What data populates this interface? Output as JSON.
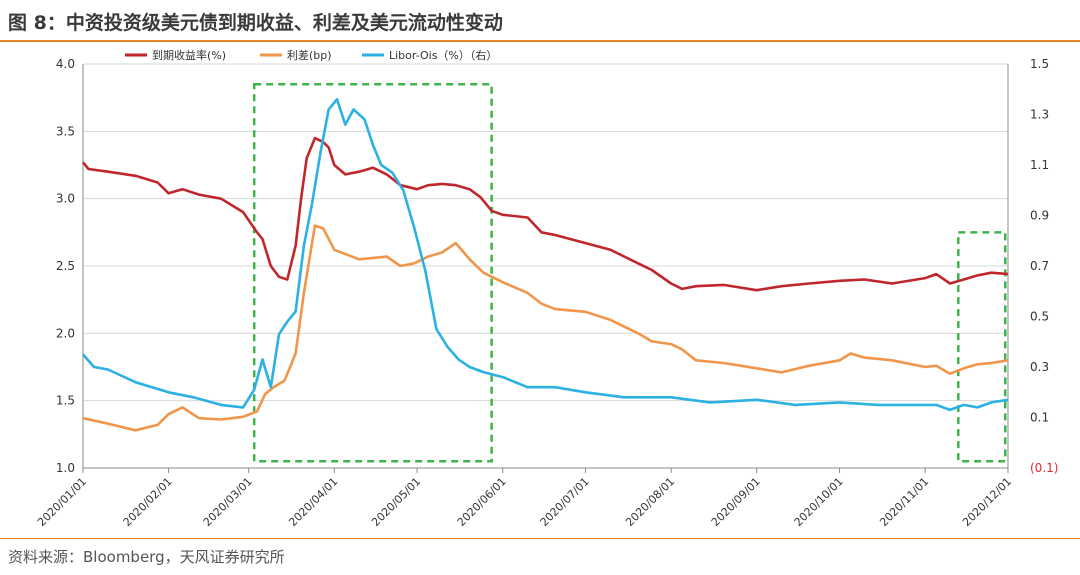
{
  "title": "图 8：中资投资级美元债到期收益、利差及美元流动性变动",
  "source": "资料来源：Bloomberg，天风证券研究所",
  "colors": {
    "yield": "#c0272d",
    "spread": "#f0954a",
    "libor": "#2bb1e3",
    "highlight": "#3cb54a",
    "accent": "#e8852c",
    "negative": "#e0282f"
  },
  "chart_data": {
    "type": "line",
    "x_tick_labels": [
      "2020/01/01",
      "2020/02/01",
      "2020/03/01",
      "2020/04/01",
      "2020/05/01",
      "2020/06/01",
      "2020/07/01",
      "2020/08/01",
      "2020/09/01",
      "2020/10/01",
      "2020/11/01",
      "2020/12/01"
    ],
    "y_left": {
      "ylim": [
        1.0,
        4.0
      ],
      "ticks": [
        "1.0",
        "1.5",
        "2.0",
        "2.5",
        "3.0",
        "3.5",
        "4.0"
      ]
    },
    "y_right": {
      "ylim": [
        -0.1,
        1.5
      ],
      "ticks": [
        "(0.1)",
        "0.1",
        "0.3",
        "0.5",
        "0.7",
        "0.9",
        "1.1",
        "1.3",
        "1.5"
      ]
    },
    "legend": {
      "position": "top-left"
    },
    "series": [
      {
        "name": "到期收益率(%)",
        "axis": "left",
        "color": "#c0272d",
        "x": [
          "2020-01-01",
          "2020-01-03",
          "2020-01-10",
          "2020-01-20",
          "2020-01-28",
          "2020-02-01",
          "2020-02-06",
          "2020-02-12",
          "2020-02-20",
          "2020-02-28",
          "2020-03-04",
          "2020-03-06",
          "2020-03-09",
          "2020-03-12",
          "2020-03-15",
          "2020-03-18",
          "2020-03-20",
          "2020-03-22",
          "2020-03-25",
          "2020-03-28",
          "2020-03-30",
          "2020-04-01",
          "2020-04-05",
          "2020-04-10",
          "2020-04-15",
          "2020-04-20",
          "2020-04-25",
          "2020-05-01",
          "2020-05-05",
          "2020-05-10",
          "2020-05-15",
          "2020-05-20",
          "2020-05-24",
          "2020-05-28",
          "2020-06-01",
          "2020-06-10",
          "2020-06-15",
          "2020-06-20",
          "2020-07-01",
          "2020-07-10",
          "2020-07-20",
          "2020-07-25",
          "2020-08-01",
          "2020-08-05",
          "2020-08-10",
          "2020-08-20",
          "2020-09-01",
          "2020-09-10",
          "2020-09-20",
          "2020-10-01",
          "2020-10-10",
          "2020-10-20",
          "2020-11-01",
          "2020-11-05",
          "2020-11-10",
          "2020-11-15",
          "2020-11-20",
          "2020-11-25",
          "2020-12-01"
        ],
        "values": [
          3.27,
          3.22,
          3.2,
          3.17,
          3.12,
          3.04,
          3.07,
          3.03,
          3.0,
          2.9,
          2.75,
          2.7,
          2.5,
          2.42,
          2.4,
          2.65,
          3.0,
          3.3,
          3.45,
          3.42,
          3.38,
          3.25,
          3.18,
          3.2,
          3.23,
          3.18,
          3.1,
          3.07,
          3.1,
          3.11,
          3.1,
          3.07,
          3.01,
          2.91,
          2.88,
          2.86,
          2.75,
          2.73,
          2.67,
          2.62,
          2.52,
          2.47,
          2.37,
          2.33,
          2.35,
          2.36,
          2.32,
          2.35,
          2.37,
          2.39,
          2.4,
          2.37,
          2.41,
          2.44,
          2.37,
          2.4,
          2.43,
          2.45,
          2.44
        ]
      },
      {
        "name": "利差(bp)",
        "axis": "left",
        "color": "#f0954a",
        "x": [
          "2020-01-01",
          "2020-01-10",
          "2020-01-20",
          "2020-01-28",
          "2020-02-01",
          "2020-02-06",
          "2020-02-12",
          "2020-02-20",
          "2020-02-28",
          "2020-03-04",
          "2020-03-07",
          "2020-03-10",
          "2020-03-14",
          "2020-03-18",
          "2020-03-21",
          "2020-03-25",
          "2020-03-28",
          "2020-04-01",
          "2020-04-10",
          "2020-04-20",
          "2020-04-25",
          "2020-04-30",
          "2020-05-05",
          "2020-05-10",
          "2020-05-15",
          "2020-05-20",
          "2020-05-25",
          "2020-06-01",
          "2020-06-10",
          "2020-06-15",
          "2020-06-20",
          "2020-07-01",
          "2020-07-10",
          "2020-07-20",
          "2020-07-25",
          "2020-08-01",
          "2020-08-05",
          "2020-08-10",
          "2020-08-20",
          "2020-09-01",
          "2020-09-10",
          "2020-09-20",
          "2020-10-01",
          "2020-10-05",
          "2020-10-10",
          "2020-10-20",
          "2020-11-01",
          "2020-11-05",
          "2020-11-10",
          "2020-11-15",
          "2020-11-20",
          "2020-11-25",
          "2020-12-01"
        ],
        "values": [
          1.37,
          1.33,
          1.28,
          1.32,
          1.4,
          1.45,
          1.37,
          1.36,
          1.38,
          1.42,
          1.55,
          1.6,
          1.65,
          1.85,
          2.3,
          2.8,
          2.78,
          2.62,
          2.55,
          2.57,
          2.5,
          2.52,
          2.57,
          2.6,
          2.67,
          2.55,
          2.45,
          2.38,
          2.3,
          2.22,
          2.18,
          2.16,
          2.1,
          2.0,
          1.94,
          1.92,
          1.88,
          1.8,
          1.78,
          1.74,
          1.71,
          1.76,
          1.8,
          1.85,
          1.82,
          1.8,
          1.75,
          1.76,
          1.7,
          1.74,
          1.77,
          1.78,
          1.8
        ]
      },
      {
        "name": "Libor-Ois（%）（右）",
        "axis": "right",
        "color": "#2bb1e3",
        "x": [
          "2020-01-01",
          "2020-01-05",
          "2020-01-10",
          "2020-01-20",
          "2020-02-01",
          "2020-02-10",
          "2020-02-20",
          "2020-02-28",
          "2020-03-03",
          "2020-03-06",
          "2020-03-09",
          "2020-03-12",
          "2020-03-15",
          "2020-03-18",
          "2020-03-21",
          "2020-03-24",
          "2020-03-27",
          "2020-03-30",
          "2020-04-02",
          "2020-04-05",
          "2020-04-08",
          "2020-04-12",
          "2020-04-15",
          "2020-04-18",
          "2020-04-22",
          "2020-04-26",
          "2020-04-30",
          "2020-05-04",
          "2020-05-08",
          "2020-05-12",
          "2020-05-16",
          "2020-05-20",
          "2020-05-25",
          "2020-06-01",
          "2020-06-10",
          "2020-06-20",
          "2020-07-01",
          "2020-07-15",
          "2020-08-01",
          "2020-08-15",
          "2020-09-01",
          "2020-09-15",
          "2020-10-01",
          "2020-10-15",
          "2020-11-01",
          "2020-11-05",
          "2020-11-10",
          "2020-11-15",
          "2020-11-20",
          "2020-11-25",
          "2020-12-01"
        ],
        "values": [
          0.35,
          0.3,
          0.29,
          0.24,
          0.2,
          0.18,
          0.15,
          0.14,
          0.21,
          0.33,
          0.22,
          0.43,
          0.48,
          0.52,
          0.78,
          0.95,
          1.15,
          1.32,
          1.36,
          1.26,
          1.32,
          1.28,
          1.18,
          1.1,
          1.07,
          1.0,
          0.85,
          0.68,
          0.45,
          0.38,
          0.33,
          0.3,
          0.28,
          0.26,
          0.22,
          0.22,
          0.2,
          0.18,
          0.18,
          0.16,
          0.17,
          0.15,
          0.16,
          0.15,
          0.15,
          0.15,
          0.13,
          0.15,
          0.14,
          0.16,
          0.17
        ]
      }
    ],
    "highlight_boxes": [
      {
        "from": "2020-03-03",
        "to": "2020-05-28",
        "y_from": 1.05,
        "y_to": 3.85
      },
      {
        "from": "2020-11-13",
        "to": "2020-11-30",
        "y_from": 1.05,
        "y_to": 2.75
      }
    ]
  }
}
